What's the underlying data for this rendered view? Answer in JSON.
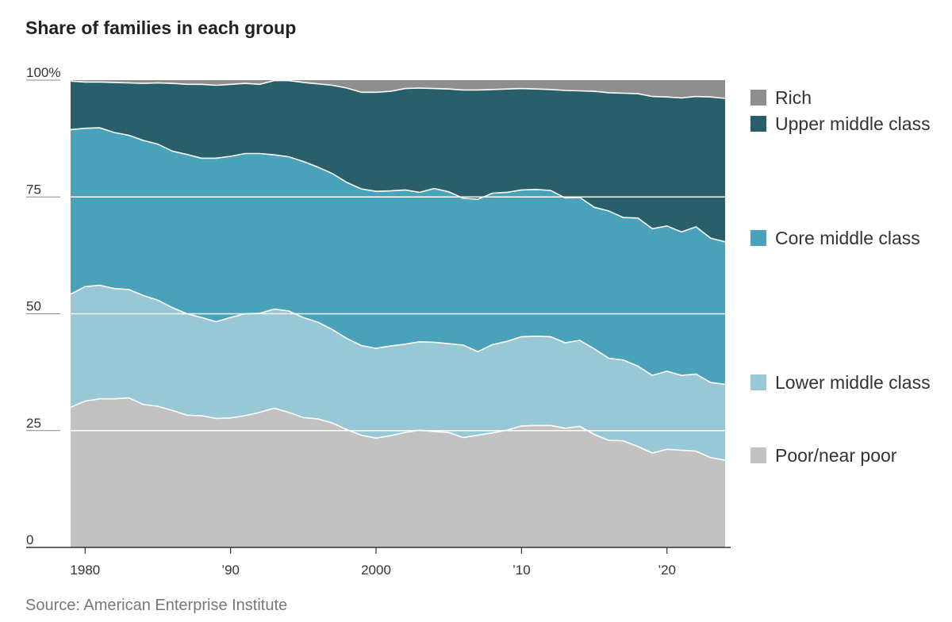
{
  "title": "Share of families in each group",
  "source": "Source: American Enterprise Institute",
  "chart_data": {
    "type": "area",
    "stacked": true,
    "title": "Share of families in each group",
    "xlabel": "",
    "ylabel": "",
    "x": [
      1979,
      1980,
      1981,
      1982,
      1983,
      1984,
      1985,
      1986,
      1987,
      1988,
      1989,
      1990,
      1991,
      1992,
      1993,
      1994,
      1995,
      1996,
      1997,
      1998,
      1999,
      2000,
      2001,
      2002,
      2003,
      2004,
      2005,
      2006,
      2007,
      2008,
      2009,
      2010,
      2011,
      2012,
      2013,
      2014,
      2015,
      2016,
      2017,
      2018,
      2019,
      2020,
      2021,
      2022,
      2023,
      2024
    ],
    "xlim": [
      1979,
      2024
    ],
    "ylim": [
      0,
      100
    ],
    "x_ticks": [
      {
        "value": 1980,
        "label": "1980"
      },
      {
        "value": 1990,
        "label": "’90"
      },
      {
        "value": 2000,
        "label": "2000"
      },
      {
        "value": 2010,
        "label": "’10"
      },
      {
        "value": 2020,
        "label": "’20"
      }
    ],
    "y_ticks": [
      {
        "value": 0,
        "label": "0"
      },
      {
        "value": 25,
        "label": "25"
      },
      {
        "value": 50,
        "label": "50"
      },
      {
        "value": 75,
        "label": "75"
      },
      {
        "value": 100,
        "label": "100%"
      }
    ],
    "grid": true,
    "legend_position": "right",
    "series": [
      {
        "name": "Poor/near poor",
        "color": "#c2c2c2",
        "values": [
          30.0,
          31.3,
          31.8,
          31.8,
          32.0,
          30.6,
          30.2,
          29.3,
          28.3,
          28.2,
          27.6,
          27.7,
          28.2,
          28.9,
          29.8,
          28.9,
          27.8,
          27.5,
          26.6,
          25.2,
          24.0,
          23.4,
          23.9,
          24.6,
          25.1,
          24.8,
          24.6,
          23.5,
          24.0,
          24.5,
          25.1,
          26.0,
          26.1,
          26.1,
          25.5,
          25.9,
          24.2,
          22.9,
          22.8,
          21.6,
          20.2,
          21.0,
          20.8,
          20.6,
          19.2,
          18.7
        ]
      },
      {
        "name": "Lower middle class",
        "color": "#98c7d5",
        "values": [
          24.2,
          24.5,
          24.3,
          23.6,
          23.2,
          23.3,
          22.7,
          22.0,
          21.7,
          21.0,
          20.7,
          21.5,
          21.8,
          21.2,
          21.2,
          21.7,
          21.4,
          20.7,
          20.0,
          19.5,
          19.2,
          19.2,
          19.2,
          18.9,
          18.9,
          19.1,
          19.0,
          19.8,
          17.9,
          18.9,
          19.0,
          19.1,
          19.1,
          19.0,
          18.3,
          18.4,
          18.3,
          17.6,
          17.3,
          17.2,
          16.6,
          16.7,
          16.0,
          16.5,
          16.1,
          16.2
        ]
      },
      {
        "name": "Core middle class",
        "color": "#49a1ba",
        "values": [
          35.2,
          33.9,
          33.7,
          33.4,
          33.0,
          33.2,
          33.4,
          33.5,
          34.1,
          34.1,
          35.0,
          34.5,
          34.3,
          34.2,
          33.0,
          33.0,
          33.4,
          33.2,
          33.4,
          33.4,
          33.5,
          33.6,
          33.2,
          33.0,
          32.0,
          32.9,
          32.5,
          31.4,
          32.6,
          32.4,
          31.9,
          31.4,
          31.4,
          31.3,
          31.0,
          30.6,
          30.3,
          31.5,
          30.5,
          31.7,
          31.4,
          31.1,
          30.7,
          31.5,
          30.9,
          30.5
        ]
      },
      {
        "name": "Upper middle class",
        "color": "#285f6b",
        "values": [
          10.4,
          9.9,
          9.8,
          10.7,
          11.2,
          12.2,
          13.1,
          14.5,
          15.0,
          15.8,
          15.6,
          15.4,
          15.0,
          14.8,
          15.9,
          16.3,
          16.9,
          17.8,
          18.9,
          20.2,
          20.7,
          21.2,
          21.3,
          21.7,
          22.3,
          21.4,
          22.0,
          23.2,
          23.4,
          22.2,
          22.1,
          21.7,
          21.5,
          21.6,
          23.0,
          22.8,
          24.8,
          25.3,
          26.6,
          26.6,
          28.3,
          27.6,
          28.7,
          27.9,
          30.2,
          30.7
        ]
      },
      {
        "name": "Rich",
        "color": "#8e8e8e",
        "values": [
          0.2,
          0.4,
          0.4,
          0.5,
          0.6,
          0.7,
          0.6,
          0.7,
          0.9,
          0.9,
          1.1,
          0.9,
          0.7,
          0.9,
          1.1,
          1.1,
          1.2,
          1.3,
          1.6,
          1.7,
          2.2,
          2.4,
          2.4,
          1.8,
          1.7,
          1.8,
          1.9,
          2.1,
          2.1,
          2.0,
          1.9,
          1.8,
          1.9,
          2.0,
          2.2,
          2.3,
          2.4,
          2.7,
          2.8,
          2.9,
          3.5,
          3.6,
          3.8,
          3.5,
          3.6,
          3.9
        ]
      }
    ]
  }
}
